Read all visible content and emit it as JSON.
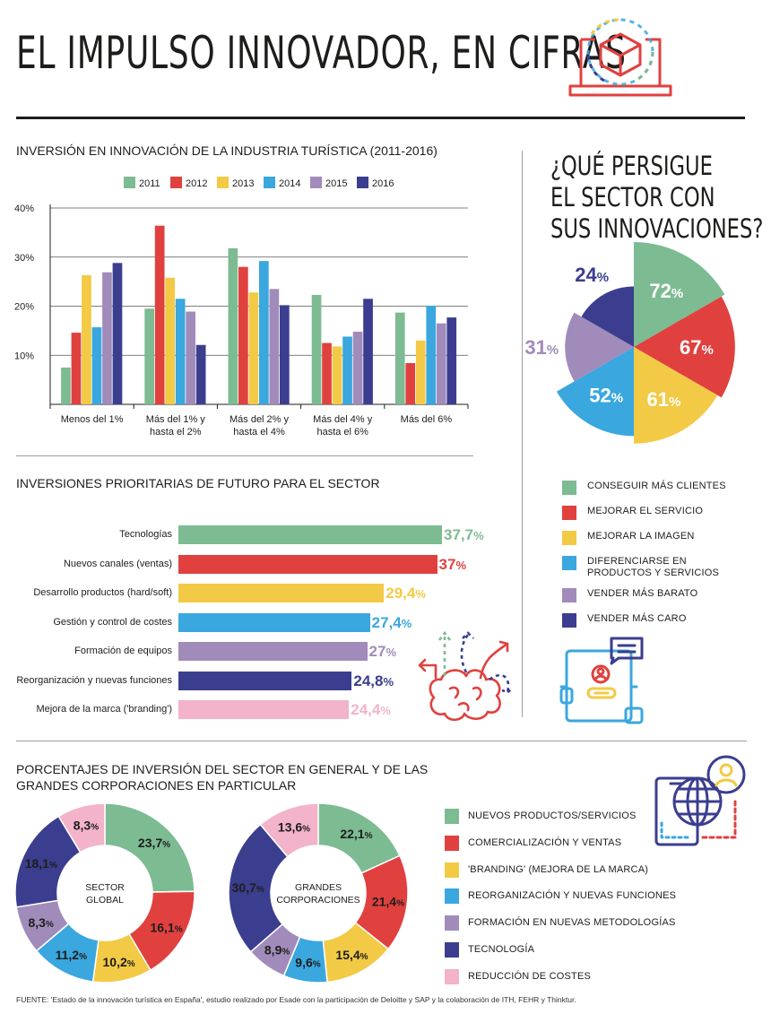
{
  "title": "EL IMPULSO INNOVADOR, EN CIFRAS",
  "colors": {
    "green": "#7dbb93",
    "red": "#e0413f",
    "yellow": "#f3ca45",
    "blue": "#3aa7de",
    "purple": "#a18bbb",
    "navy": "#3b3e8f",
    "pink": "#f2b3cb"
  },
  "section1_title": "INVERSIÓN EN INNOVACIÓN DE LA INDUSTRIA TURÍSTICA (2011-2016)",
  "section2_title": "INVERSIONES PRIORITARIAS DE FUTURO PARA EL SECTOR",
  "section3_title_line1": "PORCENTAJES DE INVERSIÓN DEL SECTOR EN GENERAL Y DE LAS",
  "section3_title_line2": "GRANDES CORPORACIONES EN PARTICULAR",
  "question_title": [
    "¿QUÉ PERSIGUE",
    "EL SECTOR CON",
    "SUS INNOVACIONES?"
  ],
  "goals_legend": [
    {
      "label": [
        "CONSEGUIR MÁS CLIENTES"
      ],
      "color": "#7dbb93"
    },
    {
      "label": [
        "MEJORAR EL SERVICIO"
      ],
      "color": "#e0413f"
    },
    {
      "label": [
        "MEJORAR LA IMAGEN"
      ],
      "color": "#f3ca45"
    },
    {
      "label": [
        "DIFERENCIARSE EN",
        "PRODUCTOS Y SERVICIOS"
      ],
      "color": "#3aa7de"
    },
    {
      "label": [
        "VENDER MÁS BARATO"
      ],
      "color": "#a18bbb"
    },
    {
      "label": [
        "VENDER MÁS CARO"
      ],
      "color": "#3b3e8f"
    }
  ],
  "investment_legend": [
    {
      "label": "NUEVOS PRODUCTOS/SERVICIOS",
      "color": "#7dbb93"
    },
    {
      "label": "COMERCIALIZACIÓN Y VENTAS",
      "color": "#e0413f"
    },
    {
      "label": "'BRANDING' (MEJORA DE LA MARCA)",
      "color": "#f3ca45"
    },
    {
      "label": "REORGANIZACIÓN Y NUEVAS FUNCIONES",
      "color": "#3aa7de"
    },
    {
      "label": "FORMACIÓN EN NUEVAS METODOLOGÍAS",
      "color": "#a18bbb"
    },
    {
      "label": "TECNOLOGÍA",
      "color": "#3b3e8f"
    },
    {
      "label": "REDUCCIÓN DE COSTES",
      "color": "#f2b3cb"
    }
  ],
  "footer": "FUENTE: 'Estado de la innovación turística en España', estudio realizado por Esade con la participación de Deloitte y SAP y la colaboración de ITH, FEHR y Thinktur.",
  "icons": [
    "laptop-cube-icon",
    "brain-arrows-icon",
    "tablet-chat-icon",
    "globe-devices-icon"
  ],
  "chart_data": [
    {
      "type": "bar",
      "title": "INVERSIÓN EN INNOVACIÓN DE LA INDUSTRIA TURÍSTICA (2011-2016)",
      "categories": [
        [
          "Menos del 1%"
        ],
        [
          "Más del 1% y",
          "hasta el 2%"
        ],
        [
          "Más del 2% y",
          "hasta el 4%"
        ],
        [
          "Más del 4% y",
          "hasta el 6%"
        ],
        [
          "Más del 6%"
        ]
      ],
      "series": [
        {
          "name": "2011",
          "color": "#7dbb93",
          "values": [
            7.5,
            19.5,
            31.8,
            22.3,
            18.7
          ]
        },
        {
          "name": "2012",
          "color": "#e0413f",
          "values": [
            14.6,
            36.4,
            28.0,
            12.5,
            8.4
          ]
        },
        {
          "name": "2013",
          "color": "#f3ca45",
          "values": [
            26.3,
            25.8,
            22.8,
            11.8,
            13.0
          ]
        },
        {
          "name": "2014",
          "color": "#3aa7de",
          "values": [
            15.7,
            21.5,
            29.2,
            13.8,
            20.1
          ]
        },
        {
          "name": "2015",
          "color": "#a18bbb",
          "values": [
            26.9,
            18.9,
            23.5,
            14.8,
            16.5
          ]
        },
        {
          "name": "2016",
          "color": "#3b3e8f",
          "values": [
            28.8,
            12.1,
            20.2,
            21.5,
            17.7
          ]
        }
      ],
      "yticks": [
        "10%",
        "20%",
        "30%",
        "40%"
      ],
      "ylim": [
        0,
        40
      ],
      "legend": "top",
      "grid": true
    },
    {
      "type": "bar",
      "orientation": "horizontal",
      "title": "INVERSIONES PRIORITARIAS DE FUTURO PARA EL SECTOR",
      "bars": [
        {
          "label": "Tecnologías",
          "value": 37.7,
          "display": "37,7",
          "color": "#7dbb93"
        },
        {
          "label": "Nuevos canales (ventas)",
          "value": 37,
          "display": "37",
          "color": "#e0413f"
        },
        {
          "label": "Desarrollo productos (hard/soft)",
          "value": 29.4,
          "display": "29,4",
          "color": "#f3ca45"
        },
        {
          "label": "Gestión y control de costes",
          "value": 27.4,
          "display": "27,4",
          "color": "#3aa7de"
        },
        {
          "label": "Formación de equipos",
          "value": 27,
          "display": "27",
          "color": "#a18bbb"
        },
        {
          "label": "Reorganización y nuevas funciones",
          "value": 24.8,
          "display": "24,8",
          "color": "#3b3e8f"
        },
        {
          "label": "Mejora de la marca ('branding')",
          "value": 24.4,
          "display": "24,4",
          "color": "#f2b3cb"
        }
      ],
      "unit": "%"
    },
    {
      "type": "pie",
      "title": "¿QUÉ PERSIGUE EL SECTOR CON SUS INNOVACIONES?",
      "slices": [
        {
          "label": "CONSEGUIR MÁS CLIENTES",
          "value": 72,
          "color": "#7dbb93"
        },
        {
          "label": "MEJORAR EL SERVICIO",
          "value": 67,
          "color": "#e0413f"
        },
        {
          "label": "MEJORAR LA IMAGEN",
          "value": 61,
          "color": "#f3ca45"
        },
        {
          "label": "DIFERENCIARSE EN PRODUCTOS Y SERVICIOS",
          "value": 52,
          "color": "#3aa7de"
        },
        {
          "label": "VENDER MÁS BARATO",
          "value": 31,
          "color": "#a18bbb"
        },
        {
          "label": "VENDER MÁS CARO",
          "value": 24,
          "color": "#3b3e8f"
        }
      ],
      "unit": "%"
    },
    {
      "type": "pie",
      "center_label": [
        "SECTOR",
        "GLOBAL"
      ],
      "slices": [
        {
          "label": "NUEVOS PRODUCTOS/SERVICIOS",
          "value": 23.7,
          "display": "23,7",
          "color": "#7dbb93"
        },
        {
          "label": "COMERCIALIZACIÓN Y VENTAS",
          "value": 16.1,
          "display": "16,1",
          "color": "#e0413f"
        },
        {
          "label": "'BRANDING' (MEJORA DE LA MARCA)",
          "value": 10.2,
          "display": "10,2",
          "color": "#f3ca45"
        },
        {
          "label": "REORGANIZACIÓN Y NUEVAS FUNCIONES",
          "value": 11.2,
          "display": "11,2",
          "color": "#3aa7de"
        },
        {
          "label": "FORMACIÓN EN NUEVAS METODOLOGÍAS",
          "value": 8.3,
          "display": "8,3",
          "color": "#a18bbb"
        },
        {
          "label": "TECNOLOGÍA",
          "value": 18.1,
          "display": "18,1",
          "color": "#3b3e8f"
        },
        {
          "label": "REDUCCIÓN DE COSTES",
          "value": 8.3,
          "display": "8,3",
          "color": "#f2b3cb"
        }
      ],
      "unit": "%"
    },
    {
      "type": "pie",
      "center_label": [
        "GRANDES",
        "CORPORACIONES"
      ],
      "slices": [
        {
          "label": "NUEVOS PRODUCTOS/SERVICIOS",
          "value": 22.1,
          "display": "22,1",
          "color": "#7dbb93"
        },
        {
          "label": "COMERCIALIZACIÓN Y VENTAS",
          "value": 21.4,
          "display": "21,4",
          "color": "#e0413f"
        },
        {
          "label": "'BRANDING' (MEJORA DE LA MARCA)",
          "value": 15.4,
          "display": "15,4",
          "color": "#f3ca45"
        },
        {
          "label": "REORGANIZACIÓN Y NUEVAS FUNCIONES",
          "value": 9.6,
          "display": "9,6",
          "color": "#3aa7de"
        },
        {
          "label": "FORMACIÓN EN NUEVAS METODOLOGÍAS",
          "value": 8.9,
          "display": "8,9",
          "color": "#a18bbb"
        },
        {
          "label": "TECNOLOGÍA",
          "value": 30.7,
          "display": "30,7",
          "color": "#3b3e8f"
        },
        {
          "label": "REDUCCIÓN DE COSTES",
          "value": 13.6,
          "display": "13,6",
          "color": "#f2b3cb"
        }
      ],
      "unit": "%"
    }
  ]
}
